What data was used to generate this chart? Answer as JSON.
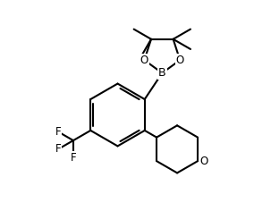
{
  "background_color": "#ffffff",
  "line_color": "#000000",
  "line_width": 1.5,
  "font_size_label": 8.5,
  "figsize": [
    2.84,
    2.36
  ],
  "dpi": 100,
  "xlim": [
    -0.3,
    2.6
  ],
  "ylim": [
    -1.8,
    1.5
  ]
}
